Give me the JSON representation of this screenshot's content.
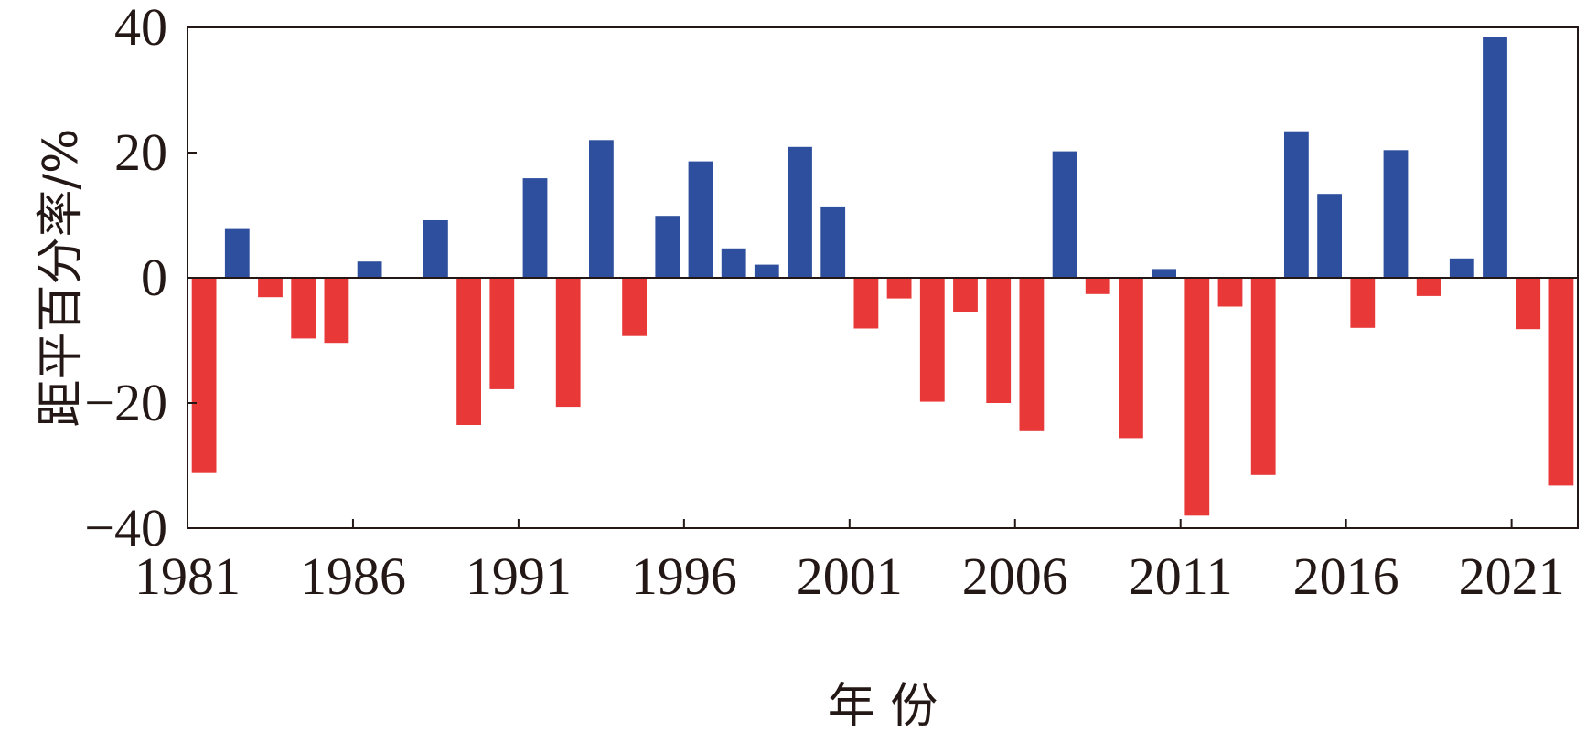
{
  "chart_data": {
    "type": "bar",
    "xlabel": "年 份",
    "ylabel": "距平百分率/%",
    "ylim": [
      -40,
      40
    ],
    "yticks": [
      40,
      20,
      0,
      -20,
      -40
    ],
    "ytick_labels": [
      "40",
      "20",
      "0",
      "−20",
      "−40"
    ],
    "xlim": [
      1981,
      2023
    ],
    "xticks": [
      1981,
      1986,
      1991,
      1996,
      2001,
      2006,
      2011,
      2016,
      2021
    ],
    "xtick_labels": [
      "1981",
      "1986",
      "1991",
      "1996",
      "2001",
      "2006",
      "2011",
      "2016",
      "2021"
    ],
    "grid": false,
    "colors": {
      "positive": "#2e4f9e",
      "negative": "#e83838"
    },
    "years": [
      1981,
      1982,
      1983,
      1984,
      1985,
      1986,
      1987,
      1988,
      1989,
      1990,
      1991,
      1992,
      1993,
      1994,
      1995,
      1996,
      1997,
      1998,
      1999,
      2000,
      2001,
      2002,
      2003,
      2004,
      2005,
      2006,
      2007,
      2008,
      2009,
      2010,
      2011,
      2012,
      2013,
      2014,
      2015,
      2016,
      2017,
      2018,
      2019,
      2020,
      2021,
      2022
    ],
    "values": [
      -31.2,
      7.8,
      -3.1,
      -9.7,
      -10.4,
      2.6,
      0,
      9.2,
      -23.5,
      -17.8,
      15.9,
      -20.6,
      22.0,
      -9.3,
      9.9,
      18.6,
      4.7,
      2.1,
      20.9,
      11.4,
      -8.1,
      -3.3,
      -19.8,
      -5.4,
      -20.0,
      -24.5,
      20.2,
      -2.6,
      -25.6,
      1.4,
      -38.0,
      -4.6,
      -31.5,
      23.4,
      13.4,
      -8.0,
      20.4,
      -2.9,
      3.1,
      38.5,
      -8.2,
      -33.2
    ]
  }
}
